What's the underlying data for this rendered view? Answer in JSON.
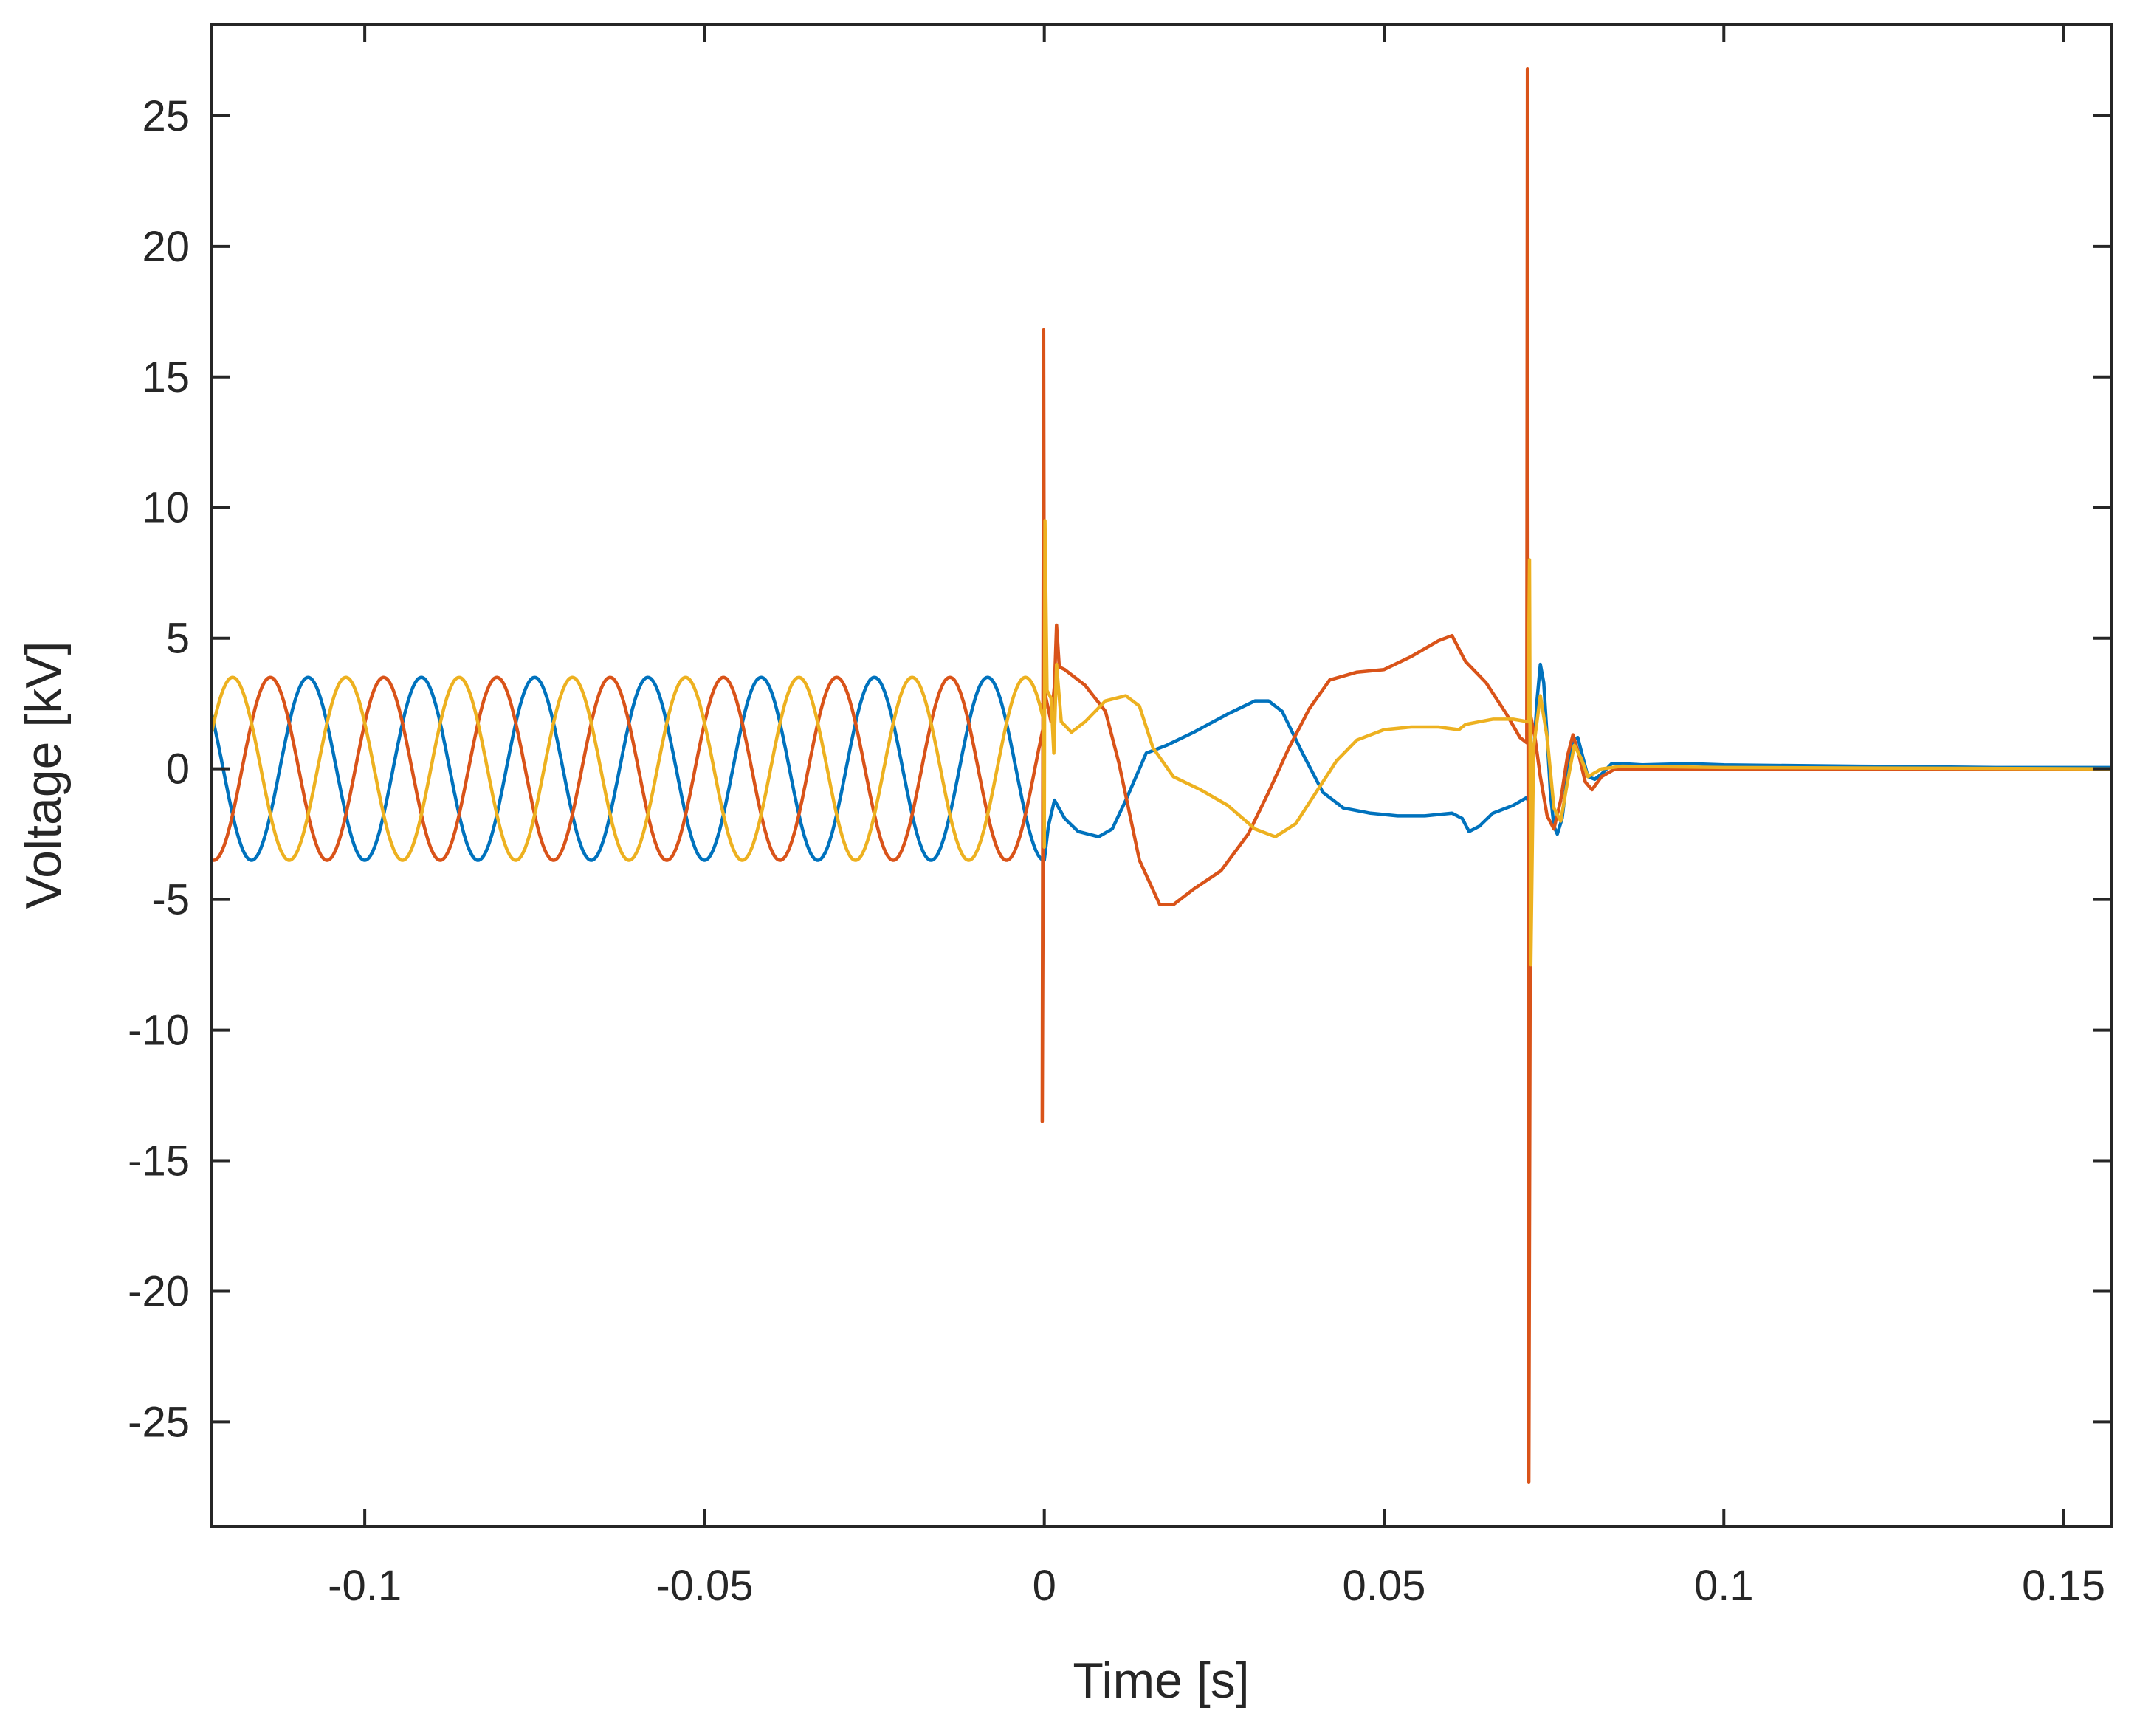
{
  "chart_data": {
    "type": "line",
    "title": "",
    "xlabel": "Time [s]",
    "ylabel": "Voltage [kV]",
    "xlim": [
      -0.1225,
      0.157
    ],
    "ylim": [
      -29,
      28.5
    ],
    "xticks": [
      -0.1,
      -0.05,
      0,
      0.05,
      0.1,
      0.15
    ],
    "xtick_labels": [
      "-0.1",
      "-0.05",
      "0",
      "0.05",
      "0.1",
      "0.15"
    ],
    "yticks": [
      25,
      20,
      15,
      10,
      5,
      0,
      -5,
      -10,
      -15,
      -20,
      -25
    ],
    "ytick_labels": [
      "25",
      "20",
      "15",
      "10",
      "5",
      "0",
      "-5",
      "-10",
      "-15",
      "-20",
      "-25"
    ],
    "grid": false,
    "legend": "none",
    "series": [
      {
        "color": "#0072BD",
        "points": [
          [
            0.0,
            -3.5
          ],
          [
            0.0006,
            -2.2
          ],
          [
            0.0015,
            -1.2
          ],
          [
            0.003,
            -1.9
          ],
          [
            0.005,
            -2.4
          ],
          [
            0.008,
            -2.6
          ],
          [
            0.01,
            -2.3
          ],
          [
            0.012,
            -1.2
          ],
          [
            0.015,
            0.6
          ],
          [
            0.018,
            0.9
          ],
          [
            0.022,
            1.4
          ],
          [
            0.027,
            2.1
          ],
          [
            0.031,
            2.6
          ],
          [
            0.033,
            2.6
          ],
          [
            0.035,
            2.2
          ],
          [
            0.038,
            0.6
          ],
          [
            0.041,
            -0.9
          ],
          [
            0.044,
            -1.5
          ],
          [
            0.048,
            -1.7
          ],
          [
            0.052,
            -1.8
          ],
          [
            0.056,
            -1.8
          ],
          [
            0.06,
            -1.7
          ],
          [
            0.0615,
            -1.9
          ],
          [
            0.0625,
            -2.4
          ],
          [
            0.064,
            -2.2
          ],
          [
            0.066,
            -1.7
          ],
          [
            0.069,
            -1.4
          ],
          [
            0.071,
            -1.1
          ],
          [
            0.0715,
            -1.4
          ],
          [
            0.072,
            0.5
          ],
          [
            0.0725,
            2.6
          ],
          [
            0.073,
            4.0
          ],
          [
            0.0735,
            3.3
          ],
          [
            0.074,
            1.2
          ],
          [
            0.0745,
            -1.0
          ],
          [
            0.075,
            -2.2
          ],
          [
            0.0755,
            -2.5
          ],
          [
            0.0762,
            -1.9
          ],
          [
            0.077,
            -0.2
          ],
          [
            0.0778,
            1.1
          ],
          [
            0.0785,
            1.2
          ],
          [
            0.0792,
            0.5
          ],
          [
            0.08,
            -0.3
          ],
          [
            0.081,
            -0.4
          ],
          [
            0.082,
            -0.2
          ],
          [
            0.0835,
            0.2
          ],
          [
            0.085,
            0.2
          ],
          [
            0.088,
            0.15
          ],
          [
            0.095,
            0.2
          ],
          [
            0.1,
            0.15
          ],
          [
            0.12,
            0.1
          ],
          [
            0.14,
            0.05
          ],
          [
            0.157,
            0.05
          ]
        ]
      },
      {
        "color": "#D95319",
        "points": [
          [
            -0.0003,
            -13.5
          ],
          [
            -0.0001,
            16.8
          ],
          [
            0.0,
            3.0
          ],
          [
            0.001,
            1.8
          ],
          [
            0.0015,
            3.2
          ],
          [
            0.0018,
            5.5
          ],
          [
            0.0022,
            3.9
          ],
          [
            0.003,
            3.8
          ],
          [
            0.006,
            3.2
          ],
          [
            0.009,
            2.2
          ],
          [
            0.011,
            0.2
          ],
          [
            0.014,
            -3.5
          ],
          [
            0.017,
            -5.2
          ],
          [
            0.019,
            -5.2
          ],
          [
            0.022,
            -4.6
          ],
          [
            0.026,
            -3.9
          ],
          [
            0.03,
            -2.5
          ],
          [
            0.033,
            -0.9
          ],
          [
            0.036,
            0.8
          ],
          [
            0.039,
            2.3
          ],
          [
            0.042,
            3.4
          ],
          [
            0.046,
            3.7
          ],
          [
            0.05,
            3.8
          ],
          [
            0.054,
            4.3
          ],
          [
            0.058,
            4.9
          ],
          [
            0.06,
            5.1
          ],
          [
            0.062,
            4.1
          ],
          [
            0.065,
            3.3
          ],
          [
            0.068,
            2.1
          ],
          [
            0.07,
            1.2
          ],
          [
            0.071,
            1.0
          ],
          [
            0.0711,
            26.8
          ],
          [
            0.0713,
            -27.3
          ],
          [
            0.0716,
            2.0
          ],
          [
            0.0722,
            1.2
          ],
          [
            0.073,
            -0.3
          ],
          [
            0.074,
            -1.8
          ],
          [
            0.075,
            -2.3
          ],
          [
            0.076,
            -1.2
          ],
          [
            0.077,
            0.5
          ],
          [
            0.0778,
            1.3
          ],
          [
            0.0786,
            0.6
          ],
          [
            0.0796,
            -0.5
          ],
          [
            0.0806,
            -0.8
          ],
          [
            0.082,
            -0.3
          ],
          [
            0.084,
            0.0
          ],
          [
            0.09,
            0.0
          ],
          [
            0.12,
            0.0
          ],
          [
            0.157,
            0.0
          ]
        ]
      },
      {
        "color": "#EDB120",
        "points": [
          [
            0.0,
            -3.0
          ],
          [
            0.0001,
            9.5
          ],
          [
            0.0004,
            3.0
          ],
          [
            0.001,
            2.7
          ],
          [
            0.0014,
            0.6
          ],
          [
            0.0018,
            4.0
          ],
          [
            0.0025,
            1.8
          ],
          [
            0.004,
            1.4
          ],
          [
            0.006,
            1.8
          ],
          [
            0.009,
            2.6
          ],
          [
            0.012,
            2.8
          ],
          [
            0.014,
            2.4
          ],
          [
            0.016,
            0.8
          ],
          [
            0.019,
            -0.3
          ],
          [
            0.023,
            -0.8
          ],
          [
            0.027,
            -1.4
          ],
          [
            0.031,
            -2.3
          ],
          [
            0.034,
            -2.6
          ],
          [
            0.037,
            -2.1
          ],
          [
            0.04,
            -0.9
          ],
          [
            0.043,
            0.3
          ],
          [
            0.046,
            1.1
          ],
          [
            0.05,
            1.5
          ],
          [
            0.054,
            1.6
          ],
          [
            0.058,
            1.6
          ],
          [
            0.061,
            1.5
          ],
          [
            0.062,
            1.7
          ],
          [
            0.064,
            1.8
          ],
          [
            0.066,
            1.9
          ],
          [
            0.069,
            1.9
          ],
          [
            0.0712,
            1.8
          ],
          [
            0.0714,
            8.0
          ],
          [
            0.0716,
            -7.5
          ],
          [
            0.072,
            0.8
          ],
          [
            0.073,
            2.8
          ],
          [
            0.074,
            1.2
          ],
          [
            0.075,
            -1.5
          ],
          [
            0.076,
            -2.0
          ],
          [
            0.077,
            -0.5
          ],
          [
            0.078,
            0.9
          ],
          [
            0.079,
            0.4
          ],
          [
            0.08,
            -0.3
          ],
          [
            0.082,
            0.0
          ],
          [
            0.085,
            0.1
          ],
          [
            0.1,
            0.05
          ],
          [
            0.157,
            0.0
          ]
        ]
      }
    ]
  }
}
